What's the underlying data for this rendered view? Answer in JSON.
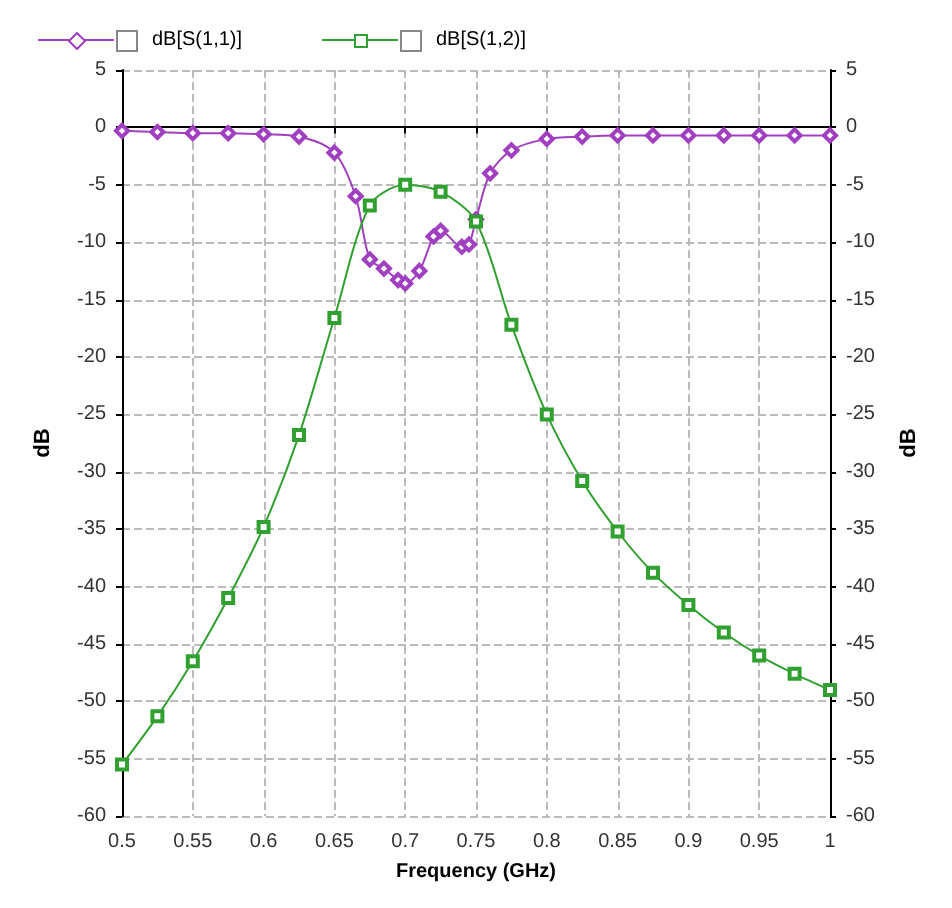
{
  "chart_data": {
    "type": "line",
    "xlabel": "Frequency (GHz)",
    "ylabel": "dB",
    "y2label": "dB",
    "xlim": [
      0.5,
      1
    ],
    "xticks": [
      0.5,
      0.55,
      0.6,
      0.65,
      0.7,
      0.75,
      0.8,
      0.85,
      0.9,
      0.95,
      1
    ],
    "ylim": [
      -60,
      5
    ],
    "yticks": [
      -60,
      -55,
      -50,
      -45,
      -40,
      -35,
      -30,
      -25,
      -20,
      -15,
      -10,
      -5,
      0,
      5
    ],
    "y2lim": [
      -60,
      5
    ],
    "y2ticks": [
      -60,
      -55,
      -50,
      -45,
      -40,
      -35,
      -30,
      -25,
      -20,
      -15,
      -10,
      -5,
      0,
      5
    ],
    "grid": true,
    "legend": "top left",
    "line_style": "solid",
    "series": [
      {
        "name": "dB[S(1,1)]",
        "color": "#a040c0",
        "marker": "diamond",
        "x": [
          0.5,
          0.525,
          0.55,
          0.575,
          0.6,
          0.625,
          0.65,
          0.665,
          0.675,
          0.685,
          0.695,
          0.7,
          0.71,
          0.72,
          0.725,
          0.74,
          0.745,
          0.75,
          0.76,
          0.775,
          0.8,
          0.825,
          0.85,
          0.875,
          0.9,
          0.925,
          0.95,
          0.975,
          1
        ],
        "values": [
          -0.3,
          -0.4,
          -0.5,
          -0.5,
          -0.6,
          -0.8,
          -2.2,
          -6,
          -11.5,
          -12.3,
          -13.3,
          -13.6,
          -12.5,
          -9.5,
          -9,
          -10.4,
          -10.2,
          -8,
          -4,
          -2,
          -1,
          -0.8,
          -0.7,
          -0.7,
          -0.7,
          -0.7,
          -0.7,
          -0.7,
          -0.7
        ]
      },
      {
        "name": "dB[S(1,2)]",
        "color": "#30a030",
        "marker": "square",
        "x": [
          0.5,
          0.525,
          0.55,
          0.575,
          0.6,
          0.625,
          0.65,
          0.675,
          0.7,
          0.725,
          0.75,
          0.775,
          0.8,
          0.825,
          0.85,
          0.875,
          0.9,
          0.925,
          0.95,
          0.975,
          1
        ],
        "values": [
          -55.5,
          -51.3,
          -46.5,
          -41,
          -34.8,
          -26.8,
          -16.6,
          -6.8,
          -5,
          -5.6,
          -8.2,
          -17.2,
          -25,
          -30.8,
          -35.2,
          -38.8,
          -41.6,
          -44,
          -46,
          -47.6,
          -49
        ]
      }
    ]
  }
}
